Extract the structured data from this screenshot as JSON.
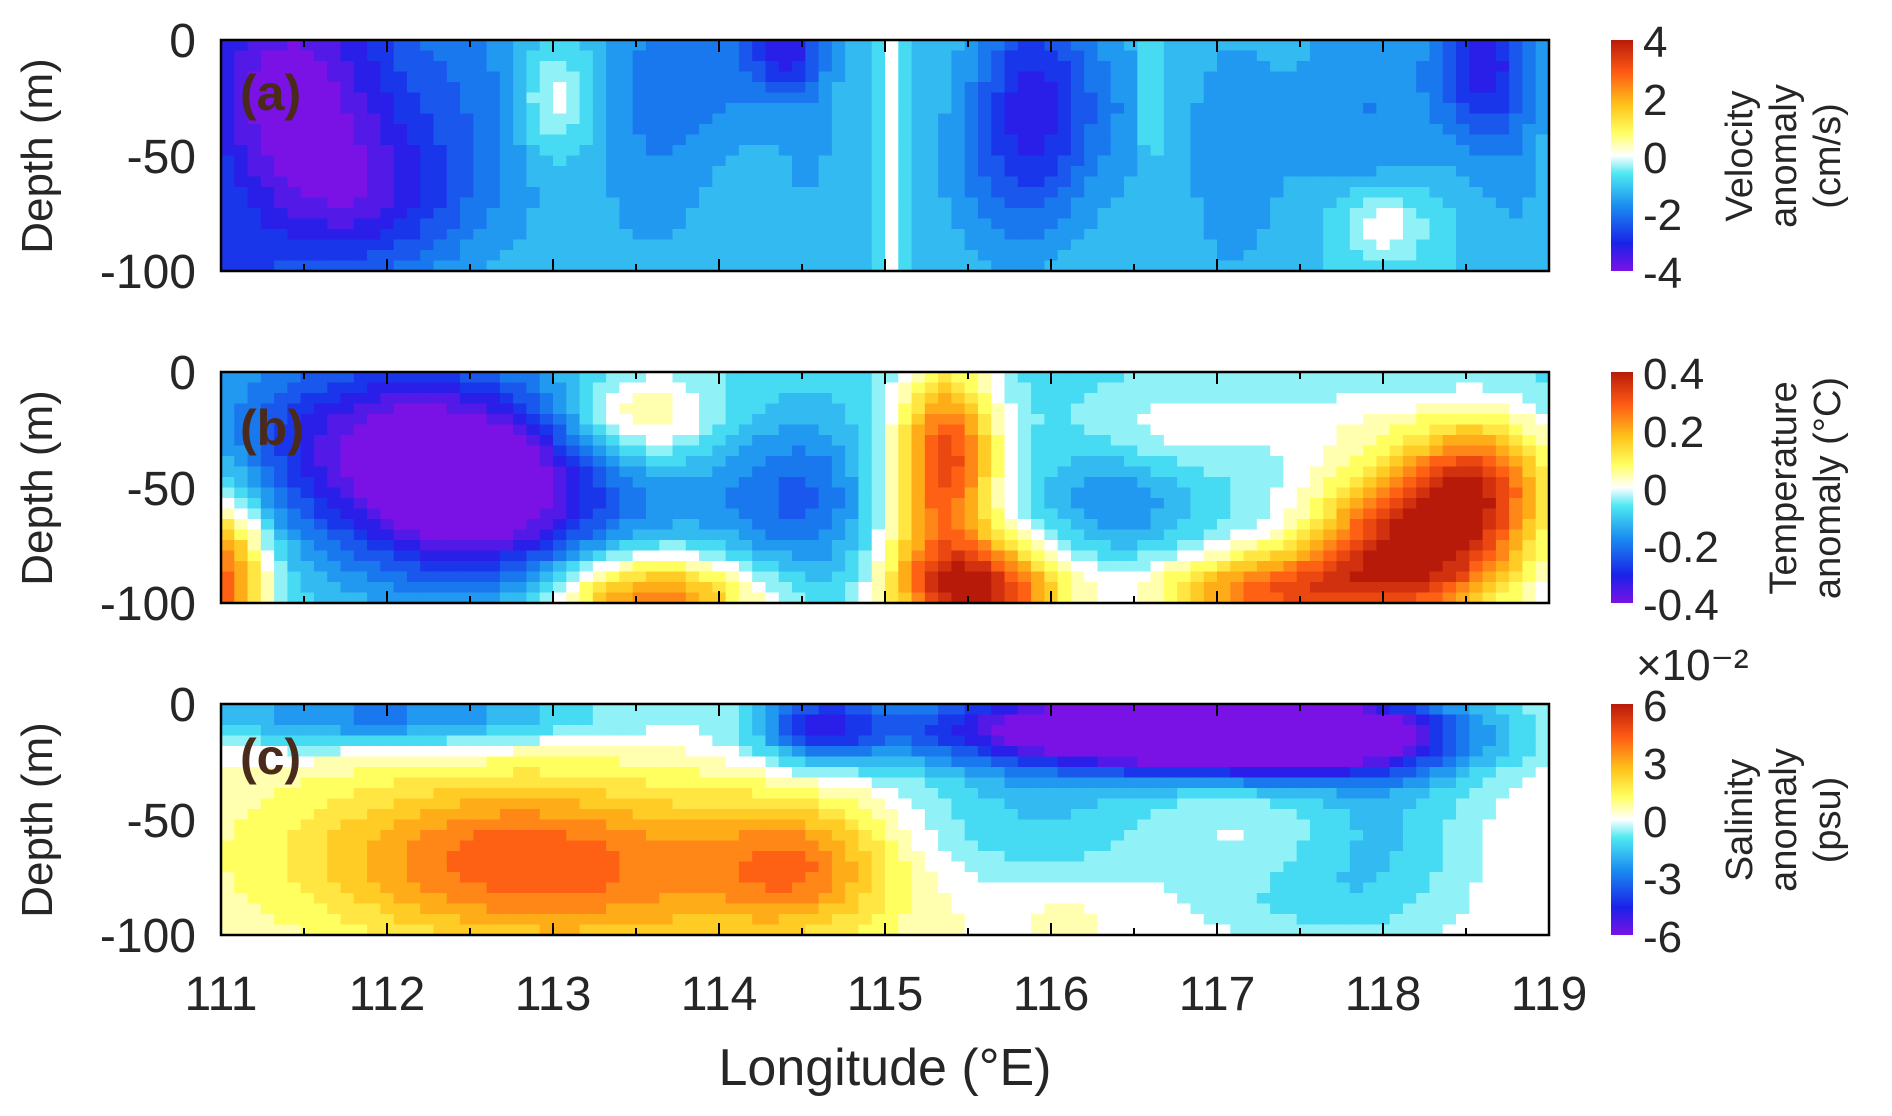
{
  "figure": {
    "x_axis_title": "Longitude (°E)",
    "x_ticks": [
      "111",
      "112",
      "113",
      "114",
      "115",
      "116",
      "117",
      "118",
      "119"
    ]
  },
  "chart_data": [
    {
      "type": "heatmap",
      "panel_label": "(a)",
      "ylabel": "Depth (m)",
      "xlim": [
        111,
        119
      ],
      "ylim": [
        -100,
        0
      ],
      "y_ticks": [
        "0",
        "-50",
        "-100"
      ],
      "colorbar": {
        "title_lines": [
          "Velocity",
          "anomaly",
          "(cm/s)"
        ],
        "range": [
          -4,
          4
        ],
        "ticks": [
          "4",
          "2",
          "0",
          "-2",
          "-4"
        ],
        "exponent": ""
      },
      "blobs": [
        {
          "x": 111.4,
          "y": -20,
          "v": -4.0,
          "sx": 0.5,
          "sy": 45
        },
        {
          "x": 111.9,
          "y": -70,
          "v": -2.6,
          "sx": 0.45,
          "sy": 25
        },
        {
          "x": 111.0,
          "y": -100,
          "v": -2.2,
          "sx": 0.25,
          "sy": 15
        },
        {
          "x": 112.6,
          "y": -20,
          "v": -1.8,
          "sx": 0.4,
          "sy": 40
        },
        {
          "x": 113.0,
          "y": -25,
          "v": 0.4,
          "sx": 0.18,
          "sy": 18
        },
        {
          "x": 113.6,
          "y": -40,
          "v": -1.6,
          "sx": 0.25,
          "sy": 50
        },
        {
          "x": 114.0,
          "y": -10,
          "v": -1.8,
          "sx": 0.35,
          "sy": 30
        },
        {
          "x": 114.4,
          "y": -5,
          "v": -2.8,
          "sx": 0.15,
          "sy": 12
        },
        {
          "x": 114.55,
          "y": -40,
          "v": -1.4,
          "sx": 0.15,
          "sy": 50
        },
        {
          "x": 115.05,
          "y": -50,
          "v": 0.2,
          "sx": 0.05,
          "sy": 80
        },
        {
          "x": 115.9,
          "y": -25,
          "v": -3.0,
          "sx": 0.25,
          "sy": 35
        },
        {
          "x": 115.7,
          "y": -60,
          "v": -1.6,
          "sx": 0.3,
          "sy": 30
        },
        {
          "x": 116.4,
          "y": -30,
          "v": -1.5,
          "sx": 0.2,
          "sy": 30
        },
        {
          "x": 116.6,
          "y": -20,
          "v": 0.0,
          "sx": 0.05,
          "sy": 25
        },
        {
          "x": 117.1,
          "y": -50,
          "v": -1.6,
          "sx": 0.25,
          "sy": 50
        },
        {
          "x": 117.9,
          "y": -30,
          "v": -1.8,
          "sx": 0.3,
          "sy": 35
        },
        {
          "x": 118.6,
          "y": -10,
          "v": -3.2,
          "sx": 0.2,
          "sy": 25
        },
        {
          "x": 118.0,
          "y": -80,
          "v": 0.3,
          "sx": 0.2,
          "sy": 12
        },
        {
          "x": 118.8,
          "y": -60,
          "v": -1.4,
          "sx": 0.15,
          "sy": 40
        }
      ],
      "base": -1.0
    },
    {
      "type": "heatmap",
      "panel_label": "(b)",
      "ylabel": "Depth (m)",
      "xlim": [
        111,
        119
      ],
      "ylim": [
        -100,
        0
      ],
      "y_ticks": [
        "0",
        "-50",
        "-100"
      ],
      "colorbar": {
        "title_lines": [
          "Temperature",
          "anomaly (°C)"
        ],
        "range": [
          -0.4,
          0.4
        ],
        "ticks": [
          "0.4",
          "0.2",
          "0",
          "-0.2",
          "-0.4"
        ],
        "exponent": ""
      },
      "blobs": [
        {
          "x": 112.6,
          "y": -50,
          "v": -0.45,
          "sx": 0.55,
          "sy": 30
        },
        {
          "x": 111.8,
          "y": -30,
          "v": -0.3,
          "sx": 0.6,
          "sy": 30
        },
        {
          "x": 111.0,
          "y": -90,
          "v": 0.3,
          "sx": 0.2,
          "sy": 25
        },
        {
          "x": 113.6,
          "y": -100,
          "v": 0.28,
          "sx": 0.45,
          "sy": 15
        },
        {
          "x": 113.5,
          "y": -20,
          "v": 0.1,
          "sx": 0.35,
          "sy": 15
        },
        {
          "x": 114.5,
          "y": -55,
          "v": -0.22,
          "sx": 0.35,
          "sy": 25
        },
        {
          "x": 113.8,
          "y": -55,
          "v": -0.12,
          "sx": 0.4,
          "sy": 20
        },
        {
          "x": 115.4,
          "y": -30,
          "v": 0.16,
          "sx": 0.2,
          "sy": 25
        },
        {
          "x": 115.6,
          "y": -95,
          "v": 0.34,
          "sx": 0.35,
          "sy": 15
        },
        {
          "x": 115.3,
          "y": -60,
          "v": 0.15,
          "sx": 0.25,
          "sy": 35
        },
        {
          "x": 116.4,
          "y": -55,
          "v": -0.18,
          "sx": 0.3,
          "sy": 18
        },
        {
          "x": 116.7,
          "y": -25,
          "v": 0.0,
          "sx": 0.4,
          "sy": 15
        },
        {
          "x": 118.2,
          "y": -75,
          "v": 0.4,
          "sx": 0.45,
          "sy": 25
        },
        {
          "x": 117.3,
          "y": -95,
          "v": 0.25,
          "sx": 0.5,
          "sy": 12
        },
        {
          "x": 118.6,
          "y": -45,
          "v": 0.2,
          "sx": 0.3,
          "sy": 20
        },
        {
          "x": 117.7,
          "y": -20,
          "v": -0.02,
          "sx": 0.5,
          "sy": 12
        }
      ],
      "base": -0.08
    },
    {
      "type": "heatmap",
      "panel_label": "(c)",
      "ylabel": "Depth (m)",
      "xlim": [
        111,
        119
      ],
      "ylim": [
        -100,
        0
      ],
      "y_ticks": [
        "0",
        "-50",
        "-100"
      ],
      "colorbar": {
        "title_lines": [
          "Salinity",
          "anomaly",
          "(psu)"
        ],
        "range": [
          -6,
          6
        ],
        "ticks": [
          "6",
          "3",
          "0",
          "-3",
          "-6"
        ],
        "exponent": "×10⁻²"
      },
      "blobs": [
        {
          "x": 112.6,
          "y": -65,
          "v": 3.2,
          "sx": 0.9,
          "sy": 25
        },
        {
          "x": 114.5,
          "y": -70,
          "v": 3.0,
          "sx": 0.4,
          "sy": 20
        },
        {
          "x": 113.4,
          "y": -80,
          "v": 2.0,
          "sx": 0.9,
          "sy": 30
        },
        {
          "x": 112.0,
          "y": -5,
          "v": -3.0,
          "sx": 0.9,
          "sy": 10
        },
        {
          "x": 114.6,
          "y": -10,
          "v": -3.2,
          "sx": 0.25,
          "sy": 12
        },
        {
          "x": 116.5,
          "y": -10,
          "v": -7.0,
          "sx": 1.1,
          "sy": 13
        },
        {
          "x": 117.4,
          "y": -15,
          "v": -5.5,
          "sx": 0.7,
          "sy": 12
        },
        {
          "x": 115.9,
          "y": -50,
          "v": -1.5,
          "sx": 0.6,
          "sy": 20
        },
        {
          "x": 118.0,
          "y": -50,
          "v": -1.5,
          "sx": 0.4,
          "sy": 30
        },
        {
          "x": 116.1,
          "y": -90,
          "v": 0.6,
          "sx": 0.2,
          "sy": 10
        },
        {
          "x": 117.5,
          "y": -85,
          "v": -0.8,
          "sx": 0.5,
          "sy": 15
        }
      ],
      "base": 0.2
    }
  ]
}
